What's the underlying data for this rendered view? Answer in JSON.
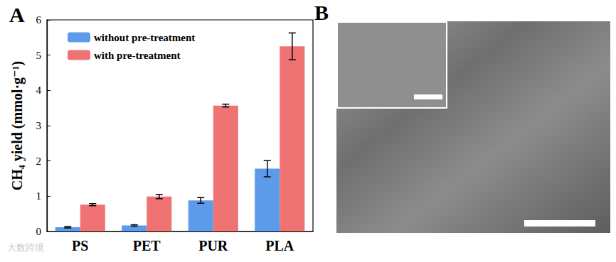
{
  "chart_data": {
    "type": "bar",
    "title": "A",
    "categories": [
      "PS",
      "PET",
      "PUR",
      "PLA"
    ],
    "series": [
      {
        "name": "without pre-treatment",
        "color": "#5b9bea",
        "values": [
          0.12,
          0.17,
          0.88,
          1.78
        ],
        "errors": [
          0.02,
          0.02,
          0.08,
          0.23
        ]
      },
      {
        "name": "with pre-treatment",
        "color": "#f07373",
        "values": [
          0.76,
          0.99,
          3.57,
          5.25
        ],
        "errors": [
          0.03,
          0.06,
          0.04,
          0.38
        ]
      }
    ],
    "y_label": "CH₄ yield (mmol·g⁻¹)",
    "ylim": [
      0,
      6
    ],
    "yticks": [
      0,
      1,
      2,
      3,
      4,
      5,
      6
    ],
    "legend": "upper left",
    "grid": false
  },
  "panel_b": {
    "label": "B"
  },
  "watermark": "大数跨境"
}
